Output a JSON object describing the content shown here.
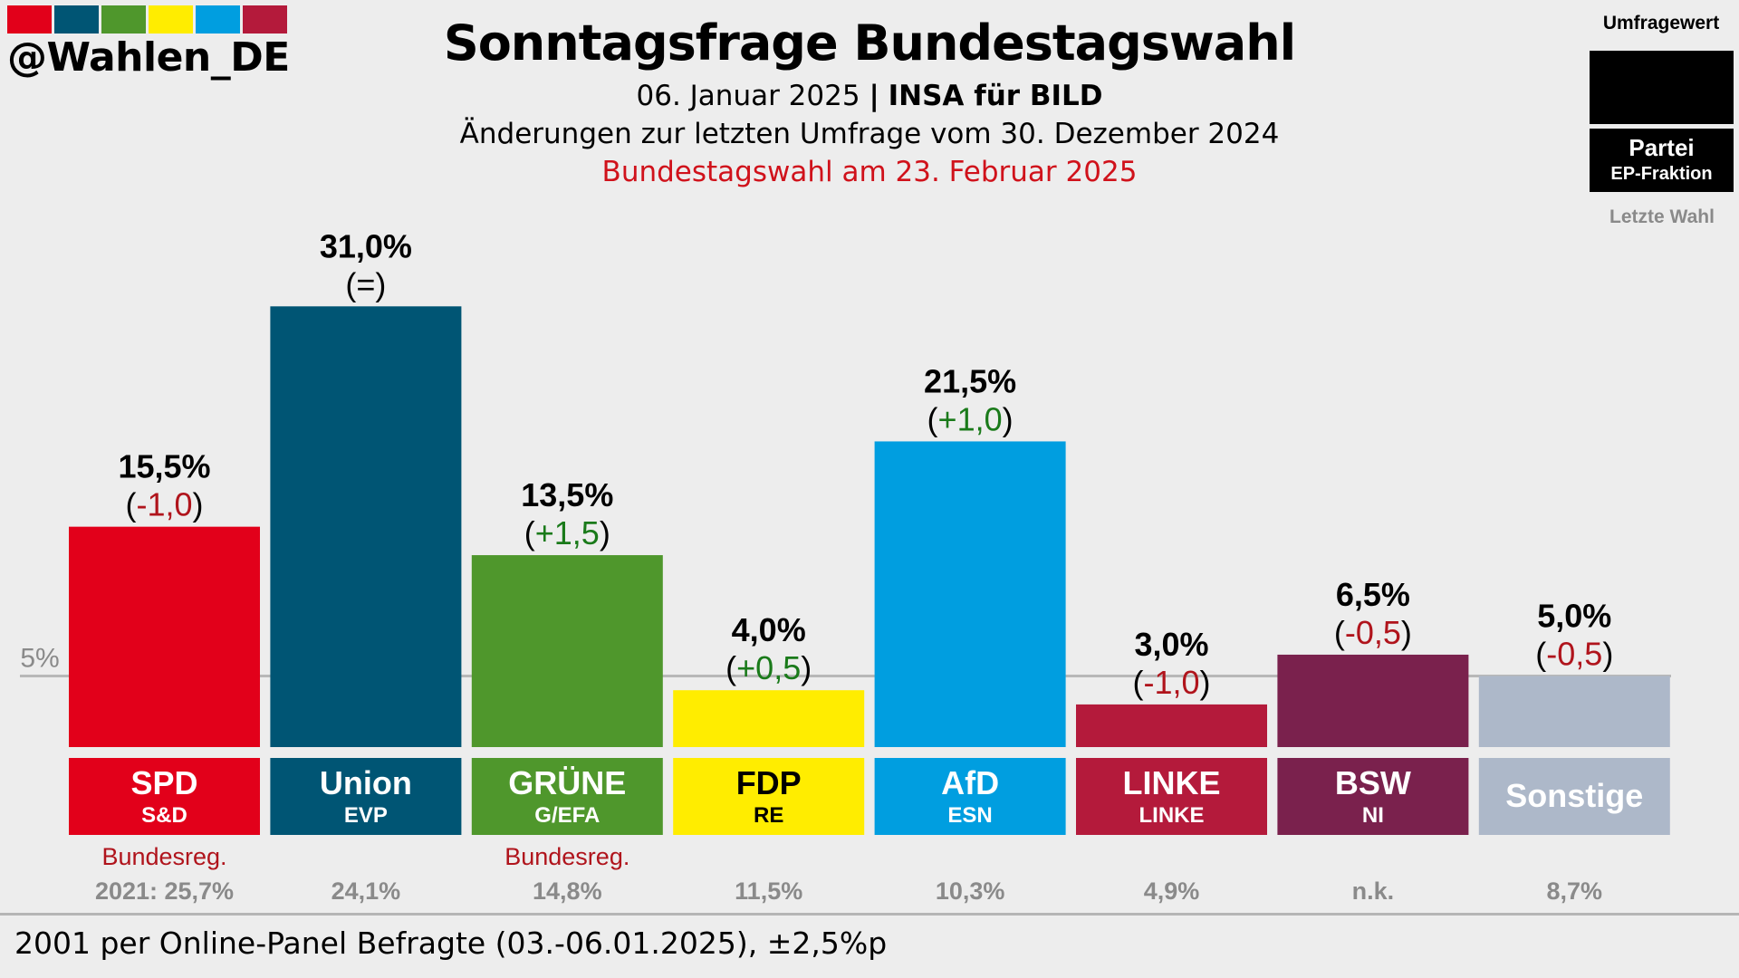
{
  "brand": {
    "handle": "@Wahlen_DE",
    "strip_colors": [
      "#e2001a",
      "#005574",
      "#4f972c",
      "#ffed00",
      "#009ee0",
      "#b41a3b"
    ]
  },
  "header": {
    "title": "Sonntagsfrage Bundestagswahl",
    "date": "06. Januar 2025",
    "separator": "|",
    "institute": "INSA für BILD",
    "changes_note": "Änderungen zur letzten Umfrage vom 30. Dezember 2024",
    "election_note": "Bundestagswahl am 23. Februar 2025"
  },
  "legend": {
    "value_label": "Umfragewert",
    "party_label": "Partei",
    "faction_label": "EP-Fraktion",
    "last_election_label": "Letzte Wahl"
  },
  "footer": {
    "text": "2001 per Online-Panel Befragte (03.-06.01.2025), ±2,5%p"
  },
  "chart_data": {
    "type": "bar",
    "title": "Sonntagsfrage Bundestagswahl",
    "xlabel": "",
    "ylabel": "",
    "ylim": [
      0,
      33
    ],
    "threshold": {
      "value": 5,
      "label": "5%"
    },
    "grid": false,
    "legend_position": "top-right",
    "categories": [
      "SPD",
      "Union",
      "GRÜNE",
      "FDP",
      "AfD",
      "LINKE",
      "BSW",
      "Sonstige"
    ],
    "values": [
      15.5,
      31.0,
      13.5,
      4.0,
      21.5,
      3.0,
      6.5,
      5.0
    ],
    "value_labels": [
      "15,5%",
      "31,0%",
      "13,5%",
      "4,0%",
      "21,5%",
      "3,0%",
      "6,5%",
      "5,0%"
    ],
    "changes": [
      -1.0,
      0.0,
      1.5,
      0.5,
      1.0,
      -1.0,
      -0.5,
      -0.5
    ],
    "change_labels": [
      "-1,0",
      "=",
      "+1,5",
      "+0,5",
      "+1,0",
      "-1,0",
      "-0,5",
      "-0,5"
    ],
    "factions": [
      "S&D",
      "EVP",
      "G/EFA",
      "RE",
      "ESN",
      "LINKE",
      "NI",
      ""
    ],
    "government_note": [
      "Bundesreg.",
      "",
      "Bundesreg.",
      "",
      "",
      "",
      "",
      ""
    ],
    "last_election": [
      "2021: 25,7%",
      "24,1%",
      "14,8%",
      "11,5%",
      "10,3%",
      "4,9%",
      "n.k.",
      "8,7%"
    ],
    "colors": [
      "#e2001a",
      "#005574",
      "#4f972c",
      "#ffed00",
      "#009ee0",
      "#b41a3b",
      "#7a214d",
      "#adb8c9"
    ],
    "label_text_colors": [
      "#ffffff",
      "#ffffff",
      "#ffffff",
      "#000000",
      "#ffffff",
      "#ffffff",
      "#ffffff",
      "#ffffff"
    ],
    "change_colors": {
      "positive": "#1a7a1a",
      "negative": "#b0141c",
      "neutral": "#000000"
    },
    "government_color": "#b0141c",
    "last_election_color": "#8a8a8a"
  }
}
